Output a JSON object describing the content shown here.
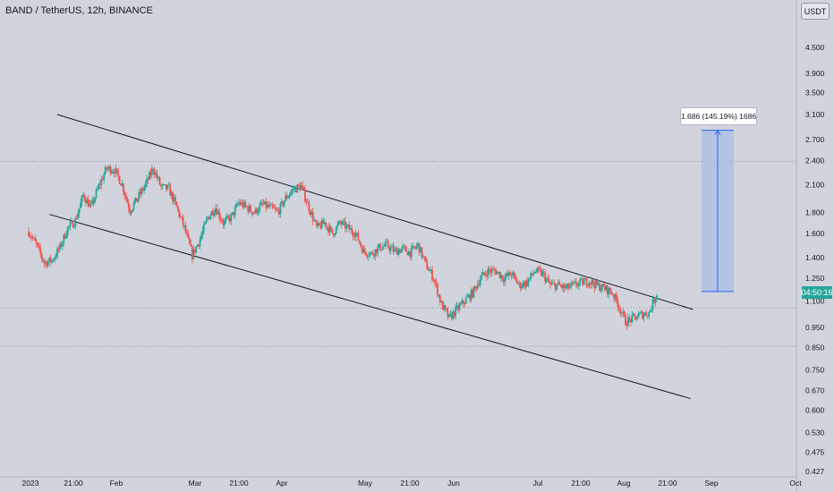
{
  "header": {
    "title": "BAND / TetherUS, 12h, BINANCE"
  },
  "toolbar": {
    "currency": "USDT"
  },
  "price_badge": "04:50:16",
  "measure_label": "1.686 (145.19%) 1686",
  "colors": {
    "background": "#d1d4dc",
    "up": "#26a69a",
    "down": "#ef5350",
    "line": "#131722",
    "measure_fill": "#a9bde6",
    "measure_line": "#2962ff"
  },
  "chart_data": {
    "type": "candlestick",
    "title": "BAND / TetherUS, 12h, BINANCE",
    "y_scale": "log",
    "ylim": [
      0.425,
      5.2
    ],
    "y_ticks": [
      "4.500",
      "3.900",
      "3.500",
      "3.100",
      "2.700",
      "2.400",
      "2.100",
      "1.800",
      "1.600",
      "1.400",
      "1.250",
      "1.100",
      "0.950",
      "0.850",
      "0.750",
      "0.670",
      "0.600",
      "0.530",
      "0.475",
      "0.427"
    ],
    "x_ticks": [
      "2023",
      "21:00",
      "Feb",
      "Mar",
      "21:00",
      "Apr",
      "May",
      "21:00",
      "Jun",
      "Jul",
      "21:00",
      "Aug",
      "21:00",
      "Sep",
      "Oct"
    ],
    "trend_channel": {
      "upper": {
        "from": [
          "2023-01-11",
          3.1
        ],
        "to": [
          "2023-09-13",
          1.05
        ]
      },
      "lower": {
        "from": [
          "2023-01-08",
          1.78
        ],
        "to": [
          "2023-09-12",
          0.64
        ]
      }
    },
    "horizontal_levels": [
      2.39,
      1.06,
      0.855
    ],
    "measure": {
      "from": 1.16,
      "to": 2.84,
      "label": "1.686 (145.19%) 1686"
    },
    "price_path": [
      [
        "2022-12-31",
        1.62
      ],
      [
        "2023-01-03",
        1.5
      ],
      [
        "2023-01-06",
        1.36
      ],
      [
        "2023-01-09",
        1.38
      ],
      [
        "2023-01-12",
        1.48
      ],
      [
        "2023-01-15",
        1.65
      ],
      [
        "2023-01-18",
        1.72
      ],
      [
        "2023-01-21",
        1.98
      ],
      [
        "2023-01-24",
        1.85
      ],
      [
        "2023-01-27",
        2.08
      ],
      [
        "2023-01-30",
        2.3
      ],
      [
        "2023-02-02",
        2.28
      ],
      [
        "2023-02-05",
        2.1
      ],
      [
        "2023-02-08",
        1.82
      ],
      [
        "2023-02-11",
        1.95
      ],
      [
        "2023-02-14",
        2.1
      ],
      [
        "2023-02-17",
        2.3
      ],
      [
        "2023-02-20",
        2.07
      ],
      [
        "2023-02-23",
        2.05
      ],
      [
        "2023-02-26",
        1.85
      ],
      [
        "2023-03-01",
        1.65
      ],
      [
        "2023-03-04",
        1.42
      ],
      [
        "2023-03-07",
        1.55
      ],
      [
        "2023-03-10",
        1.75
      ],
      [
        "2023-03-13",
        1.85
      ],
      [
        "2023-03-16",
        1.7
      ],
      [
        "2023-03-19",
        1.75
      ],
      [
        "2023-03-22",
        1.9
      ],
      [
        "2023-03-25",
        1.85
      ],
      [
        "2023-03-28",
        1.8
      ],
      [
        "2023-03-31",
        1.88
      ],
      [
        "2023-04-03",
        1.85
      ],
      [
        "2023-04-06",
        1.8
      ],
      [
        "2023-04-09",
        1.95
      ],
      [
        "2023-04-12",
        2.05
      ],
      [
        "2023-04-15",
        2.08
      ],
      [
        "2023-04-18",
        1.85
      ],
      [
        "2023-04-21",
        1.65
      ],
      [
        "2023-04-24",
        1.7
      ],
      [
        "2023-04-27",
        1.6
      ],
      [
        "2023-04-30",
        1.7
      ],
      [
        "2023-05-03",
        1.65
      ],
      [
        "2023-05-06",
        1.6
      ],
      [
        "2023-05-09",
        1.45
      ],
      [
        "2023-05-12",
        1.43
      ],
      [
        "2023-05-15",
        1.48
      ],
      [
        "2023-05-18",
        1.5
      ],
      [
        "2023-05-21",
        1.45
      ],
      [
        "2023-05-24",
        1.47
      ],
      [
        "2023-05-27",
        1.44
      ],
      [
        "2023-05-30",
        1.5
      ],
      [
        "2023-06-02",
        1.35
      ],
      [
        "2023-06-05",
        1.25
      ],
      [
        "2023-06-08",
        1.08
      ],
      [
        "2023-06-11",
        1.0
      ],
      [
        "2023-06-14",
        1.05
      ],
      [
        "2023-06-17",
        1.1
      ],
      [
        "2023-06-20",
        1.15
      ],
      [
        "2023-06-23",
        1.25
      ],
      [
        "2023-06-26",
        1.3
      ],
      [
        "2023-06-29",
        1.3
      ],
      [
        "2023-07-02",
        1.25
      ],
      [
        "2023-07-05",
        1.28
      ],
      [
        "2023-07-08",
        1.2
      ],
      [
        "2023-07-11",
        1.22
      ],
      [
        "2023-07-14",
        1.3
      ],
      [
        "2023-07-17",
        1.28
      ],
      [
        "2023-07-20",
        1.2
      ],
      [
        "2023-07-23",
        1.2
      ],
      [
        "2023-07-26",
        1.18
      ],
      [
        "2023-07-29",
        1.2
      ],
      [
        "2023-08-01",
        1.22
      ],
      [
        "2023-08-04",
        1.23
      ],
      [
        "2023-08-07",
        1.2
      ],
      [
        "2023-08-10",
        1.18
      ],
      [
        "2023-08-13",
        1.15
      ],
      [
        "2023-08-16",
        1.05
      ],
      [
        "2023-08-18",
        0.98
      ],
      [
        "2023-08-21",
        1.0
      ],
      [
        "2023-08-24",
        1.02
      ],
      [
        "2023-08-27",
        1.03
      ],
      [
        "2023-08-30",
        1.15
      ]
    ]
  }
}
